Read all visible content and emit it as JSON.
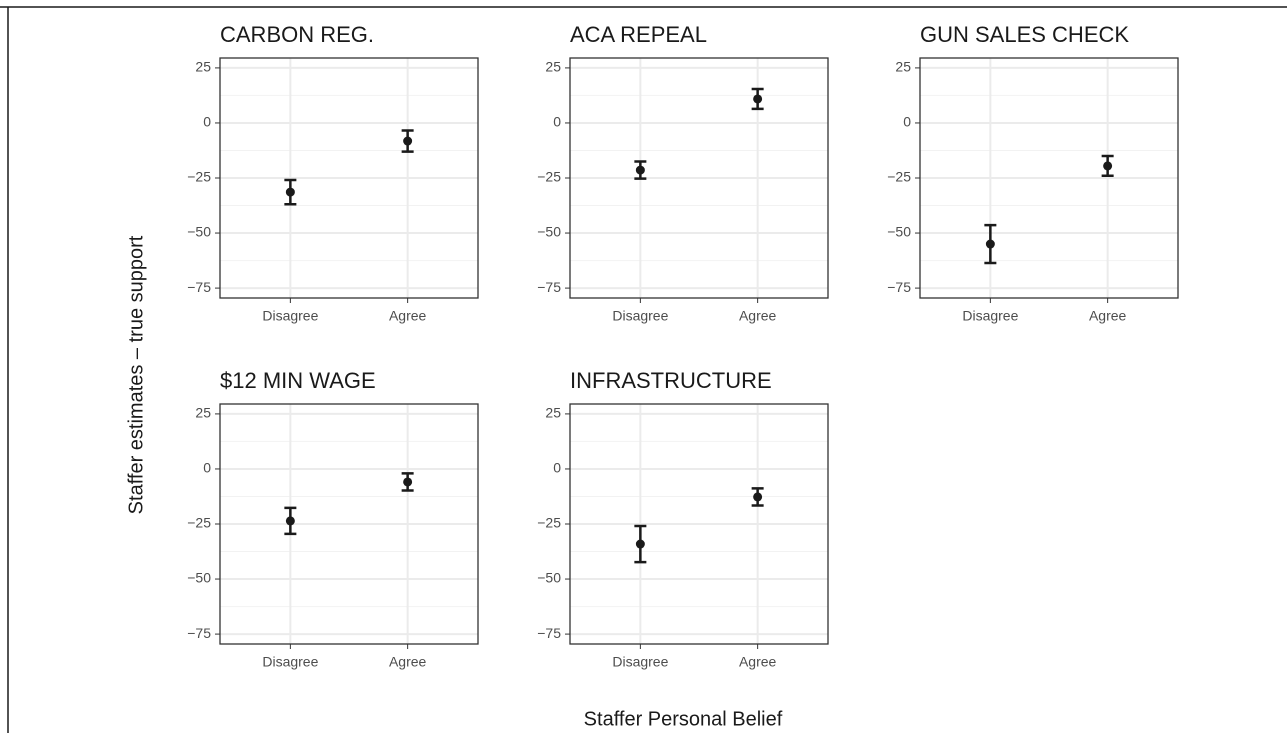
{
  "xlabel": "Staffer Personal Belief",
  "ylabel": "Staffer estimates – true support",
  "chart_data": [
    {
      "type": "errorbar",
      "title": "CARBON REG.",
      "categories": [
        "Disagree",
        "Agree"
      ],
      "values": [
        -31.4,
        -8.2
      ],
      "errors": [
        5.5,
        4.8
      ],
      "color": "#1a1a1a",
      "ylim": [
        -79.5,
        29.5
      ],
      "yticks": [
        {
          "value": -75,
          "label": "−75"
        },
        {
          "value": -50,
          "label": "−50"
        },
        {
          "value": -25,
          "label": "−25"
        },
        0,
        25
      ],
      "yminor": [
        -62.5,
        -37.5,
        -12.5,
        12.5
      ],
      "grid": true
    },
    {
      "type": "errorbar",
      "title": "ACA REPEAL",
      "categories": [
        "Disagree",
        "Agree"
      ],
      "values": [
        -21.4,
        10.9
      ],
      "errors": [
        3.9,
        4.5
      ],
      "color": "#1a1a1a",
      "ylim": [
        -79.5,
        29.5
      ],
      "yticks": [
        {
          "value": -75,
          "label": "−75"
        },
        {
          "value": -50,
          "label": "−50"
        },
        {
          "value": -25,
          "label": "−25"
        },
        0,
        25
      ],
      "yminor": [
        -62.5,
        -37.5,
        -12.5,
        12.5
      ],
      "grid": true
    },
    {
      "type": "errorbar",
      "title": "GUN SALES CHECK",
      "categories": [
        "Disagree",
        "Agree"
      ],
      "values": [
        -55,
        -19.5
      ],
      "errors": [
        8.6,
        4.5
      ],
      "color": "#1a1a1a",
      "ylim": [
        -79.5,
        29.5
      ],
      "yticks": [
        {
          "value": -75,
          "label": "−75"
        },
        {
          "value": -50,
          "label": "−50"
        },
        {
          "value": -25,
          "label": "−25"
        },
        0,
        25
      ],
      "yminor": [
        -62.5,
        -37.5,
        -12.5,
        12.5
      ],
      "grid": true
    },
    {
      "type": "errorbar",
      "title": "$12 MIN WAGE",
      "categories": [
        "Disagree",
        "Agree"
      ],
      "values": [
        -23.6,
        -5.9
      ],
      "errors": [
        5.9,
        3.9
      ],
      "color": "#1a1a1a",
      "ylim": [
        -79.5,
        29.5
      ],
      "yticks": [
        {
          "value": -75,
          "label": "−75"
        },
        {
          "value": -50,
          "label": "−50"
        },
        {
          "value": -25,
          "label": "−25"
        },
        0,
        25
      ],
      "yminor": [
        -62.5,
        -37.5,
        -12.5,
        12.5
      ],
      "grid": true
    },
    {
      "type": "errorbar",
      "title": "INFRASTRUCTURE",
      "categories": [
        "Disagree",
        "Agree"
      ],
      "values": [
        -34.1,
        -12.7
      ],
      "errors": [
        8.2,
        3.9
      ],
      "color": "#1a1a1a",
      "ylim": [
        -79.5,
        29.5
      ],
      "yticks": [
        {
          "value": -75,
          "label": "−75"
        },
        {
          "value": -50,
          "label": "−50"
        },
        {
          "value": -25,
          "label": "−25"
        },
        0,
        25
      ],
      "yminor": [
        -62.5,
        -37.5,
        -12.5,
        12.5
      ],
      "grid": true
    }
  ]
}
